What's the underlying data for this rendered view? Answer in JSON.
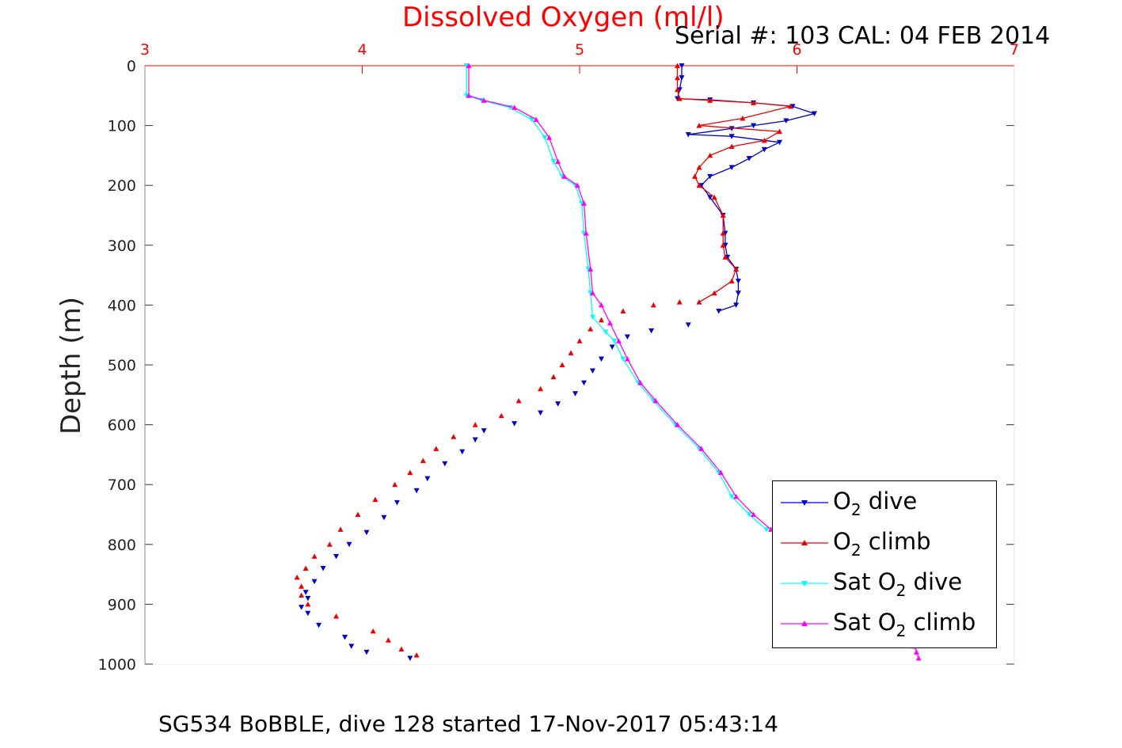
{
  "chart_data": {
    "type": "scatter",
    "title": "Dissolved Oxygen (ml/l)",
    "subtitle": "Serial #: 103  CAL: 04 FEB 2014",
    "footer": "SG534 BoBBLE, dive 128 started 17-Nov-2017 05:43:14",
    "ylabel": "Depth (m)",
    "xlabel": "",
    "x_axis_position": "top",
    "xlim": [
      3,
      7
    ],
    "ylim": [
      0,
      1000
    ],
    "y_reversed": true,
    "xticks": [
      "3",
      "4",
      "5",
      "6",
      "7"
    ],
    "yticks": [
      "0",
      "100",
      "200",
      "300",
      "400",
      "500",
      "600",
      "700",
      "800",
      "900",
      "1000"
    ],
    "grid": true,
    "legend_position": "bottom-right",
    "colors": {
      "title": "#ff0000",
      "xtick": "#ff0000",
      "grid": "#e6e6e6",
      "o2_dive": "#0000cc",
      "o2_climb": "#ee0000",
      "sat_dive": "#00ffff",
      "sat_climb": "#ff00ff"
    },
    "series": [
      {
        "name_parts": [
          "O",
          "2",
          " dive"
        ],
        "color": "#0000cc",
        "marker": "triangle-down",
        "line": true,
        "points": [
          [
            5.47,
            0
          ],
          [
            5.47,
            20
          ],
          [
            5.46,
            40
          ],
          [
            5.45,
            55
          ],
          [
            5.6,
            57
          ],
          [
            5.8,
            62
          ],
          [
            5.98,
            68
          ],
          [
            6.08,
            80
          ],
          [
            5.95,
            92
          ],
          [
            5.8,
            100
          ],
          [
            5.7,
            105
          ],
          [
            5.5,
            115
          ],
          [
            5.7,
            118
          ],
          [
            5.92,
            128
          ],
          [
            5.85,
            140
          ],
          [
            5.78,
            155
          ],
          [
            5.7,
            170
          ],
          [
            5.6,
            185
          ],
          [
            5.56,
            200
          ],
          [
            5.6,
            220
          ],
          [
            5.66,
            250
          ],
          [
            5.67,
            280
          ],
          [
            5.67,
            300
          ],
          [
            5.68,
            320
          ],
          [
            5.72,
            340
          ],
          [
            5.73,
            360
          ],
          [
            5.73,
            380
          ],
          [
            5.72,
            400
          ],
          [
            5.64,
            410
          ]
        ]
      },
      {
        "name_parts": [
          "O",
          "2",
          " climb"
        ],
        "color": "#ee0000",
        "marker": "triangle-up",
        "line": true,
        "points": [
          [
            5.45,
            0
          ],
          [
            5.45,
            20
          ],
          [
            5.45,
            40
          ],
          [
            5.46,
            55
          ],
          [
            5.6,
            58
          ],
          [
            5.8,
            62
          ],
          [
            5.97,
            68
          ],
          [
            5.75,
            88
          ],
          [
            5.55,
            100
          ],
          [
            5.92,
            110
          ],
          [
            5.85,
            125
          ],
          [
            5.7,
            135
          ],
          [
            5.6,
            150
          ],
          [
            5.55,
            170
          ],
          [
            5.53,
            185
          ],
          [
            5.55,
            200
          ],
          [
            5.62,
            220
          ],
          [
            5.66,
            250
          ],
          [
            5.66,
            280
          ],
          [
            5.66,
            300
          ],
          [
            5.67,
            320
          ],
          [
            5.72,
            340
          ],
          [
            5.7,
            360
          ],
          [
            5.62,
            380
          ],
          [
            5.55,
            395
          ]
        ]
      },
      {
        "name_parts": [
          "O",
          "2",
          " dive"
        ],
        "color": "#0000cc",
        "marker": "triangle-down",
        "line": false,
        "points": [
          [
            5.5,
            433
          ],
          [
            5.33,
            443
          ],
          [
            5.22,
            453
          ],
          [
            5.15,
            470
          ],
          [
            5.1,
            490
          ],
          [
            5.06,
            510
          ],
          [
            5.02,
            530
          ],
          [
            4.98,
            548
          ],
          [
            4.9,
            565
          ],
          [
            4.82,
            580
          ],
          [
            4.7,
            598
          ],
          [
            4.56,
            610
          ],
          [
            4.52,
            625
          ],
          [
            4.46,
            645
          ],
          [
            4.38,
            665
          ],
          [
            4.3,
            690
          ],
          [
            4.25,
            710
          ],
          [
            4.16,
            730
          ],
          [
            4.1,
            755
          ],
          [
            4.02,
            780
          ],
          [
            3.94,
            800
          ],
          [
            3.88,
            820
          ],
          [
            3.82,
            840
          ],
          [
            3.78,
            862
          ],
          [
            3.74,
            880
          ],
          [
            3.75,
            890
          ],
          [
            3.72,
            905
          ],
          [
            3.75,
            915
          ],
          [
            3.8,
            935
          ],
          [
            3.92,
            955
          ],
          [
            3.95,
            970
          ],
          [
            4.02,
            980
          ],
          [
            4.22,
            990
          ]
        ]
      },
      {
        "name_parts": [
          "O",
          "2",
          " climb"
        ],
        "color": "#ee0000",
        "marker": "triangle-up",
        "line": false,
        "points": [
          [
            5.46,
            395
          ],
          [
            5.34,
            400
          ],
          [
            5.2,
            410
          ],
          [
            5.1,
            425
          ],
          [
            5.05,
            440
          ],
          [
            5.0,
            460
          ],
          [
            4.96,
            480
          ],
          [
            4.92,
            500
          ],
          [
            4.88,
            520
          ],
          [
            4.82,
            540
          ],
          [
            4.72,
            560
          ],
          [
            4.64,
            585
          ],
          [
            4.52,
            600
          ],
          [
            4.42,
            620
          ],
          [
            4.34,
            640
          ],
          [
            4.28,
            660
          ],
          [
            4.22,
            680
          ],
          [
            4.15,
            700
          ],
          [
            4.06,
            725
          ],
          [
            3.98,
            750
          ],
          [
            3.9,
            775
          ],
          [
            3.85,
            800
          ],
          [
            3.78,
            820
          ],
          [
            3.74,
            840
          ],
          [
            3.7,
            855
          ],
          [
            3.72,
            870
          ],
          [
            3.72,
            885
          ],
          [
            3.75,
            900
          ],
          [
            3.88,
            920
          ],
          [
            4.05,
            945
          ],
          [
            4.12,
            960
          ],
          [
            4.18,
            975
          ],
          [
            4.25,
            985
          ]
        ]
      },
      {
        "name_parts": [
          "Sat O",
          "2",
          " dive"
        ],
        "color": "#00ffff",
        "marker": "triangle-down",
        "line": true,
        "points": [
          [
            4.48,
            0
          ],
          [
            4.48,
            50
          ],
          [
            4.55,
            58
          ],
          [
            4.68,
            70
          ],
          [
            4.78,
            90
          ],
          [
            4.84,
            120
          ],
          [
            4.88,
            160
          ],
          [
            4.92,
            185
          ],
          [
            4.98,
            200
          ],
          [
            5.01,
            230
          ],
          [
            5.02,
            280
          ],
          [
            5.04,
            340
          ],
          [
            5.05,
            380
          ],
          [
            5.06,
            420
          ],
          [
            5.12,
            445
          ],
          [
            5.16,
            460
          ],
          [
            5.2,
            490
          ],
          [
            5.27,
            530
          ],
          [
            5.34,
            560
          ],
          [
            5.44,
            600
          ],
          [
            5.55,
            640
          ],
          [
            5.64,
            680
          ],
          [
            5.7,
            720
          ],
          [
            5.78,
            750
          ],
          [
            5.86,
            775
          ]
        ]
      },
      {
        "name_parts": [
          "Sat O",
          "2",
          " climb"
        ],
        "color": "#ff00ff",
        "marker": "triangle-up",
        "line": true,
        "points": [
          [
            4.49,
            0
          ],
          [
            4.49,
            50
          ],
          [
            4.56,
            58
          ],
          [
            4.7,
            70
          ],
          [
            4.8,
            90
          ],
          [
            4.86,
            120
          ],
          [
            4.9,
            160
          ],
          [
            4.93,
            185
          ],
          [
            4.99,
            200
          ],
          [
            5.02,
            230
          ],
          [
            5.03,
            280
          ],
          [
            5.05,
            340
          ],
          [
            5.06,
            380
          ],
          [
            5.1,
            400
          ],
          [
            5.14,
            430
          ],
          [
            5.18,
            460
          ],
          [
            5.22,
            490
          ],
          [
            5.28,
            530
          ],
          [
            5.35,
            560
          ],
          [
            5.45,
            600
          ],
          [
            5.56,
            640
          ],
          [
            5.65,
            680
          ],
          [
            5.72,
            720
          ],
          [
            5.8,
            750
          ],
          [
            5.88,
            775
          ]
        ]
      },
      {
        "name_parts": [
          "Sat O",
          "2",
          " climb"
        ],
        "color": "#ff00ff",
        "marker": "triangle-up",
        "line": true,
        "points": [
          [
            6.54,
            970
          ],
          [
            6.55,
            980
          ],
          [
            6.56,
            990
          ]
        ]
      }
    ]
  }
}
